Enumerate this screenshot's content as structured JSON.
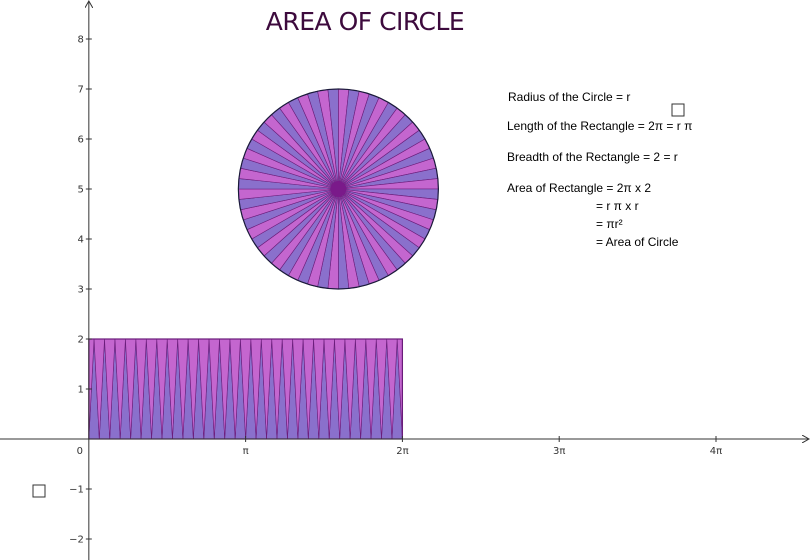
{
  "title": "AREA OF CIRCLE",
  "axes": {
    "x_ticks": [
      {
        "value": 0,
        "label": "0"
      },
      {
        "value": 3.14159,
        "label": "π"
      },
      {
        "value": 6.28318,
        "label": "2π"
      },
      {
        "value": 9.42478,
        "label": "3π"
      },
      {
        "value": 12.56637,
        "label": "4π"
      }
    ],
    "y_ticks": [
      {
        "value": 8,
        "label": "8"
      },
      {
        "value": 7,
        "label": "7"
      },
      {
        "value": 6,
        "label": "6"
      },
      {
        "value": 5,
        "label": "5"
      },
      {
        "value": 4,
        "label": "4"
      },
      {
        "value": 3,
        "label": "3"
      },
      {
        "value": 2,
        "label": "2"
      },
      {
        "value": 1,
        "label": "1"
      },
      {
        "value": -1,
        "label": "−1"
      },
      {
        "value": -2,
        "label": "−2"
      }
    ],
    "xlim": [
      -1.78,
      14.45
    ],
    "ylim": [
      -2.42,
      8.78
    ]
  },
  "circle": {
    "center": [
      5,
      5
    ],
    "radius": 2,
    "sectors": 60
  },
  "rectangle": {
    "length": 6.28318,
    "breadth": 2,
    "triangles": 60
  },
  "colors": {
    "title": "#3d0a3d",
    "sector_a": "#c466cf",
    "sector_b": "#8a70cc",
    "tri_a": "#c466cf",
    "tri_b": "#8a70cc",
    "edge": "#6a1c7a",
    "center": "#7a1a8a"
  },
  "notes": {
    "radius": "Radius of the Circle = r",
    "length": "Length of the Rectangle =  2π  = r π",
    "breadth": "Breadth of the Rectangle = 2 = r",
    "area1": "Area of Rectangle  = 2π x 2",
    "area2": "= r π  x  r",
    "area3": "= πr²",
    "area4": "= Area of Circle"
  }
}
